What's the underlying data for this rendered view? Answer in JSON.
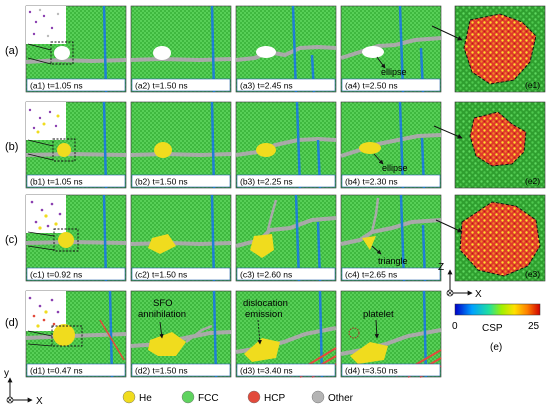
{
  "rows": [
    {
      "label": "(a)",
      "panels": [
        {
          "caption": "(a1) t=1.05 ns"
        },
        {
          "caption": "(a2) t=1.50 ns"
        },
        {
          "caption": "(a3) t=2.45 ns"
        },
        {
          "caption": "(a4) t=2.50 ns",
          "annotation": "ellipse"
        }
      ],
      "side_label": "(e1)"
    },
    {
      "label": "(b)",
      "panels": [
        {
          "caption": "(b1) t=1.05 ns"
        },
        {
          "caption": "(b2) t=1.50 ns"
        },
        {
          "caption": "(b3) t=2.25 ns"
        },
        {
          "caption": "(b4) t=2.30 ns",
          "annotation": "ellipse"
        }
      ],
      "side_label": "(e2)"
    },
    {
      "label": "(c)",
      "panels": [
        {
          "caption": "(c1) t=0.92 ns"
        },
        {
          "caption": "(c2) t=1.50 ns"
        },
        {
          "caption": "(c3) t=2.60 ns"
        },
        {
          "caption": "(c4) t=2.65 ns",
          "annotation": "triangle"
        }
      ],
      "side_label": "(e3)"
    },
    {
      "label": "(d)",
      "panels": [
        {
          "caption": "(d1) t=0.47 ns"
        },
        {
          "caption": "(d2) t=1.50 ns",
          "annotation": "SFO\nannihilation"
        },
        {
          "caption": "(d3) t=3.40 ns",
          "annotation": "dislocation\nemission"
        },
        {
          "caption": "(d4) t=3.50 ns",
          "annotation": "platelet"
        }
      ]
    }
  ],
  "axes_xy": {
    "y": "y",
    "x": "X"
  },
  "axes_zx": {
    "z": "Z",
    "x": "X"
  },
  "colorbar": {
    "label": "CSP",
    "min": "0",
    "max": "25",
    "panel_label": "(e)"
  },
  "legend": [
    {
      "label": "He",
      "color": "#f2e21a"
    },
    {
      "label": "FCC",
      "color": "#5fd35f"
    },
    {
      "label": "HCP",
      "color": "#e24a3b"
    },
    {
      "label": "Other",
      "color": "#b4b4b4"
    }
  ],
  "colors": {
    "fcc": "#3fbf3f",
    "gb": "#a9a9a9",
    "twin": "#1f7fd6",
    "he": "#f0dc1e",
    "void": "#ffffff"
  }
}
